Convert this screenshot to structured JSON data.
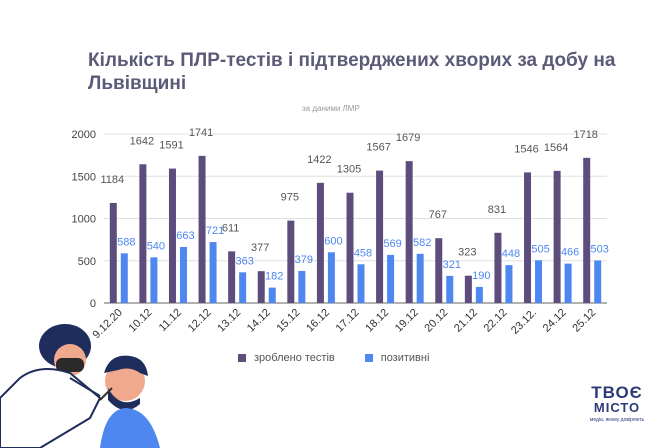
{
  "title": "Кількість ПЛР-тестів і підтверджених хворих за добу на Львівщині",
  "subtitle": "за даними ЛМР",
  "colors": {
    "tested": "#5c4d7d",
    "positive": "#4f87f0",
    "grid": "#e0e0e0",
    "axis": "#666666"
  },
  "chart_data": {
    "type": "bar",
    "title": "Кількість ПЛР-тестів і підтверджених хворих за добу на Львівщині",
    "subtitle": "за даними ЛМР",
    "categories": [
      "9.12.20",
      "10.12",
      "11.12",
      "12.12",
      "13.12",
      "14.12",
      "15.12",
      "16.12",
      "17.12",
      "18.12",
      "19.12",
      "20.12",
      "21.12",
      "22.12",
      "23.12.",
      "24.12",
      "25.12"
    ],
    "series": [
      {
        "name": "зроблено тестів",
        "values": [
          1184,
          1642,
          1591,
          1741,
          611,
          377,
          975,
          1422,
          1305,
          1567,
          1679,
          767,
          323,
          831,
          1546,
          1564,
          1718
        ]
      },
      {
        "name": "позитивні",
        "values": [
          588,
          540,
          663,
          721,
          363,
          182,
          379,
          600,
          458,
          569,
          582,
          321,
          190,
          448,
          505,
          466,
          503
        ]
      }
    ],
    "yticks": [
      0,
      500,
      1000,
      1500,
      2000
    ],
    "ylim": [
      0,
      2000
    ],
    "grid": true,
    "legend": "bottom-center"
  },
  "legend": {
    "tested": "зроблено тестів",
    "positive": "позитивні"
  },
  "logo": {
    "line1": "ТВОЄ",
    "line2": "МІСТО",
    "tagline": "медіа, якому довіряють"
  },
  "illustration": "doctor-swab-test-illustration"
}
